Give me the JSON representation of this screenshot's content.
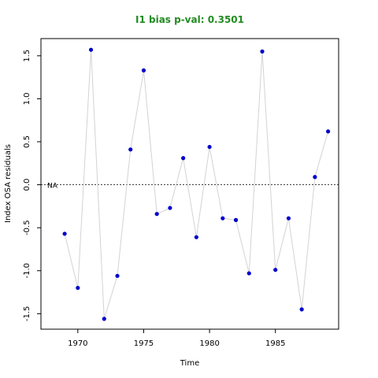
{
  "chart_data": {
    "type": "scatter",
    "title": "I1 bias p-val: 0.3501",
    "title_color": "#228b22",
    "xlabel": "Time",
    "ylabel": "Index OSA residuals",
    "x": [
      1969,
      1970,
      1971,
      1972,
      1973,
      1974,
      1975,
      1976,
      1977,
      1978,
      1979,
      1980,
      1981,
      1982,
      1983,
      1984,
      1985,
      1986,
      1987,
      1988,
      1989
    ],
    "y": [
      -0.57,
      -1.2,
      1.57,
      -1.56,
      -1.06,
      0.41,
      1.33,
      -0.34,
      -0.27,
      0.31,
      -0.61,
      0.44,
      -0.39,
      -0.41,
      -1.03,
      1.55,
      -0.99,
      -0.39,
      -1.45,
      0.09,
      0.62
    ],
    "xlim": [
      1967.2,
      1989.8
    ],
    "ylim": [
      -1.68,
      1.7
    ],
    "xticks": [
      1970,
      1975,
      1980,
      1985
    ],
    "yticks": [
      -1.5,
      -1.0,
      -0.5,
      0.0,
      0.5,
      1.0,
      1.5
    ],
    "ytick_labels": [
      "-1.5",
      "-1.0",
      "-0.5",
      "0.0",
      "0.5",
      "1.0",
      "1.5"
    ],
    "reference_line": 0,
    "reference_label": "NA",
    "point_color": "#0000cd",
    "line_color": "#d3d3d3",
    "grid": false,
    "legend": "none"
  }
}
